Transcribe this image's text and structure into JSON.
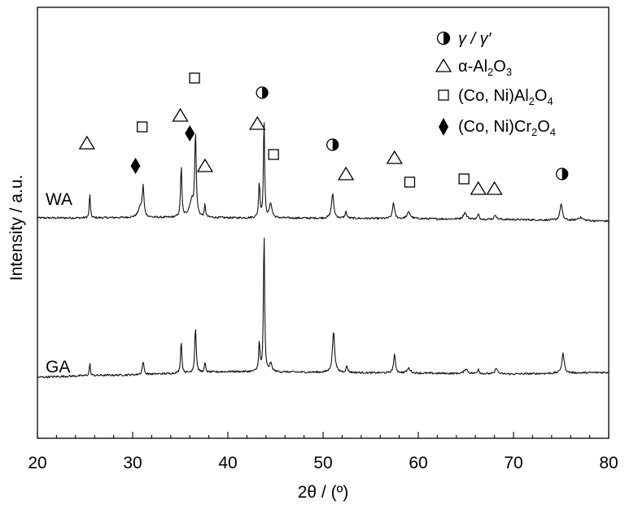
{
  "chart_data": {
    "type": "line",
    "xlabel": "2θ / (º)",
    "ylabel": "Intensity / a.u.",
    "xlim": [
      20,
      80
    ],
    "x_ticks": [
      "20",
      "30",
      "40",
      "50",
      "60",
      "70",
      "80"
    ],
    "grid": false,
    "legend_position": "top-right",
    "legend": [
      {
        "marker": "half-circle",
        "name": "γ / γ′",
        "text_main": "γ / γ′",
        "sub": "",
        "post": "",
        "sub2": ""
      },
      {
        "marker": "triangle",
        "name": "α-Al2O3",
        "text_main": "α-Al",
        "sub": "2",
        "post": "O",
        "sub2": "3"
      },
      {
        "marker": "square",
        "name": "(Co, Ni)Al2O4",
        "text_main": "(Co, Ni)Al",
        "sub": "2",
        "post": "O",
        "sub2": "4"
      },
      {
        "marker": "diamond",
        "name": "(Co, Ni)Cr2O4",
        "text_main": "(Co, Ni)Cr",
        "sub": "2",
        "post": "O",
        "sub2": "4"
      }
    ],
    "series": [
      {
        "name": "WA",
        "baseline": [
          [
            20,
            0.0
          ],
          [
            25,
            0.0
          ],
          [
            30,
            0.02
          ],
          [
            40,
            0.0
          ],
          [
            50,
            -0.02
          ],
          [
            60,
            -0.05
          ],
          [
            70,
            -0.1
          ],
          [
            80,
            -0.2
          ]
        ],
        "peaks": [
          [
            25.5,
            1.6,
            0.06
          ],
          [
            30.8,
            0.6,
            0.25
          ],
          [
            31.1,
            1.8,
            0.1
          ],
          [
            35.1,
            3.2,
            0.08
          ],
          [
            36.2,
            1.0,
            0.3
          ],
          [
            36.6,
            5.0,
            0.09
          ],
          [
            37.6,
            0.8,
            0.07
          ],
          [
            43.3,
            2.2,
            0.08
          ],
          [
            43.8,
            6.3,
            0.07
          ],
          [
            44.5,
            0.9,
            0.15
          ],
          [
            51.0,
            1.5,
            0.14
          ],
          [
            52.4,
            0.4,
            0.1
          ],
          [
            57.4,
            1.0,
            0.12
          ],
          [
            59.0,
            0.4,
            0.2
          ],
          [
            64.9,
            0.4,
            0.2
          ],
          [
            66.3,
            0.3,
            0.1
          ],
          [
            68.1,
            0.3,
            0.12
          ],
          [
            75.0,
            1.0,
            0.15
          ],
          [
            77.0,
            0.2,
            0.3
          ]
        ]
      },
      {
        "name": "GA",
        "baseline": [
          [
            20,
            0.0
          ],
          [
            25,
            0.1
          ],
          [
            30,
            0.15
          ],
          [
            40,
            0.35
          ],
          [
            50,
            0.3
          ],
          [
            60,
            0.25
          ],
          [
            70,
            0.2
          ],
          [
            80,
            0.3
          ]
        ],
        "peaks": [
          [
            25.5,
            0.8,
            0.06
          ],
          [
            31.1,
            0.8,
            0.1
          ],
          [
            35.1,
            2.0,
            0.08
          ],
          [
            36.6,
            2.8,
            0.09
          ],
          [
            37.6,
            0.6,
            0.07
          ],
          [
            43.3,
            1.8,
            0.08
          ],
          [
            43.8,
            8.8,
            0.07
          ],
          [
            44.5,
            0.5,
            0.15
          ],
          [
            51.1,
            2.5,
            0.14
          ],
          [
            52.5,
            0.4,
            0.1
          ],
          [
            57.5,
            1.1,
            0.12
          ],
          [
            59.0,
            0.3,
            0.2
          ],
          [
            65.0,
            0.3,
            0.2
          ],
          [
            66.3,
            0.3,
            0.1
          ],
          [
            68.2,
            0.4,
            0.12
          ],
          [
            75.2,
            1.2,
            0.15
          ]
        ]
      }
    ],
    "phase_markers": [
      {
        "phase": "half-circle",
        "x": 43.6,
        "level": 6.6
      },
      {
        "phase": "half-circle",
        "x": 51.0,
        "level": 3.4
      },
      {
        "phase": "half-circle",
        "x": 75.1,
        "level": 1.6
      },
      {
        "phase": "triangle",
        "x": 25.2,
        "level": 3.5
      },
      {
        "phase": "triangle",
        "x": 35.0,
        "level": 5.2
      },
      {
        "phase": "triangle",
        "x": 37.6,
        "level": 2.1
      },
      {
        "phase": "triangle",
        "x": 43.1,
        "level": 4.7
      },
      {
        "phase": "triangle",
        "x": 52.4,
        "level": 1.6
      },
      {
        "phase": "triangle",
        "x": 57.5,
        "level": 2.6
      },
      {
        "phase": "triangle",
        "x": 66.3,
        "level": 0.7
      },
      {
        "phase": "triangle",
        "x": 68.0,
        "level": 0.7
      },
      {
        "phase": "square",
        "x": 31.0,
        "level": 4.5
      },
      {
        "phase": "square",
        "x": 36.5,
        "level": 7.5
      },
      {
        "phase": "square",
        "x": 44.8,
        "level": 2.8
      },
      {
        "phase": "square",
        "x": 59.1,
        "level": 1.1
      },
      {
        "phase": "square",
        "x": 64.8,
        "level": 1.3
      },
      {
        "phase": "diamond",
        "x": 30.3,
        "level": 2.1
      },
      {
        "phase": "diamond",
        "x": 36.0,
        "level": 4.1
      }
    ]
  }
}
